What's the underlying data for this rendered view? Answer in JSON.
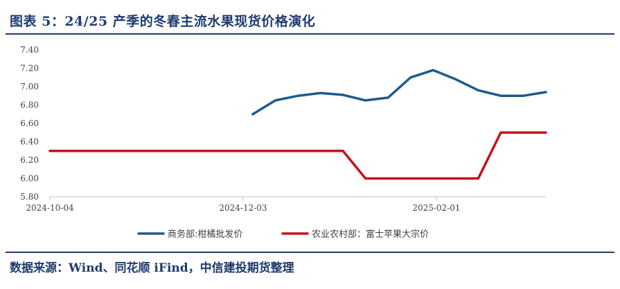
{
  "figure": {
    "title": "图表 5：24/25 产季的冬春主流水果现货价格演化",
    "source": "数据来源：Wind、同花顺 iFind，中信建投期货整理"
  },
  "chart_data": {
    "type": "line",
    "title": "",
    "xlabel": "",
    "ylabel": "",
    "ylim": [
      5.8,
      7.4
    ],
    "y_ticks": [
      5.8,
      6.0,
      6.2,
      6.4,
      6.6,
      6.8,
      7.0,
      7.2,
      7.4
    ],
    "y_tick_labels": [
      "5.80",
      "6.00",
      "6.20",
      "6.40",
      "6.60",
      "6.80",
      "7.00",
      "7.20",
      "7.40"
    ],
    "x_tick_labels": [
      "2024-10-04",
      "2024-12-03",
      "2025-02-01"
    ],
    "x_tick_dates": [
      "2024-10-04",
      "2024-12-03",
      "2025-02-01"
    ],
    "x_range": [
      "2024-10-04",
      "2025-03-07"
    ],
    "grid": false,
    "legend_position": "bottom",
    "series": [
      {
        "name": "商务部:柑橘批发价",
        "color": "#1f5a8a",
        "points": [
          [
            "2024-12-06",
            6.7
          ],
          [
            "2024-12-13",
            6.85
          ],
          [
            "2024-12-20",
            6.9
          ],
          [
            "2024-12-27",
            6.93
          ],
          [
            "2025-01-03",
            6.91
          ],
          [
            "2025-01-10",
            6.85
          ],
          [
            "2025-01-17",
            6.88
          ],
          [
            "2025-01-24",
            7.1
          ],
          [
            "2025-01-31",
            7.18
          ],
          [
            "2025-02-07",
            7.08
          ],
          [
            "2025-02-14",
            6.96
          ],
          [
            "2025-02-21",
            6.9
          ],
          [
            "2025-02-28",
            6.9
          ],
          [
            "2025-03-07",
            6.94
          ]
        ]
      },
      {
        "name": "农业农村部：富士苹果大宗价",
        "color": "#c8101c",
        "points": [
          [
            "2024-10-04",
            6.3
          ],
          [
            "2025-01-03",
            6.3
          ],
          [
            "2025-01-10",
            6.0
          ],
          [
            "2025-02-14",
            6.0
          ],
          [
            "2025-02-21",
            6.5
          ],
          [
            "2025-03-07",
            6.5
          ]
        ]
      }
    ]
  }
}
